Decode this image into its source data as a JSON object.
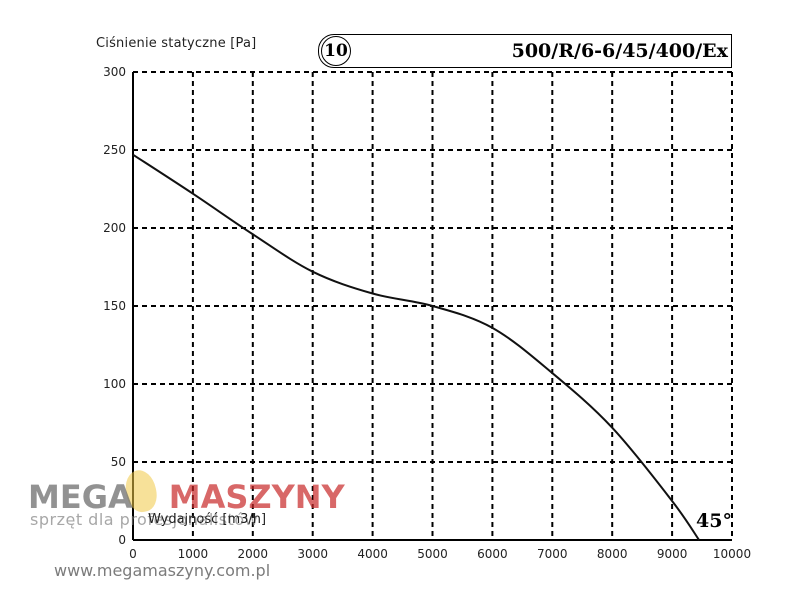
{
  "chart_data": {
    "type": "line",
    "badge": "10",
    "model": "500/R/6-6/45/400/Ex",
    "blade_angle": "45°",
    "ylabel": "Ciśnienie statyczne [Pa]",
    "xlabel": "Wydajność [m3/h]",
    "xlim": [
      0,
      10000
    ],
    "ylim": [
      0,
      300
    ],
    "x_ticks": [
      "0",
      "1000",
      "2000",
      "3000",
      "4000",
      "5000",
      "6000",
      "7000",
      "8000",
      "9000",
      "10000"
    ],
    "y_ticks": [
      "0",
      "50",
      "100",
      "150",
      "200",
      "250",
      "300"
    ],
    "grid": true,
    "series": [
      {
        "x": [
          0,
          1000,
          2000,
          3000,
          4000,
          5000,
          6000,
          7000,
          8000,
          9000,
          9450
        ],
        "y": [
          247,
          222,
          196,
          172,
          158,
          150,
          136,
          107,
          72,
          25,
          0
        ]
      }
    ]
  },
  "watermark": {
    "brand_left": "MEGA",
    "brand_right": "MASZYNY",
    "tagline": "sprzęt dla profesjonalistów",
    "url": "www.megamaszyny.com.pl"
  }
}
